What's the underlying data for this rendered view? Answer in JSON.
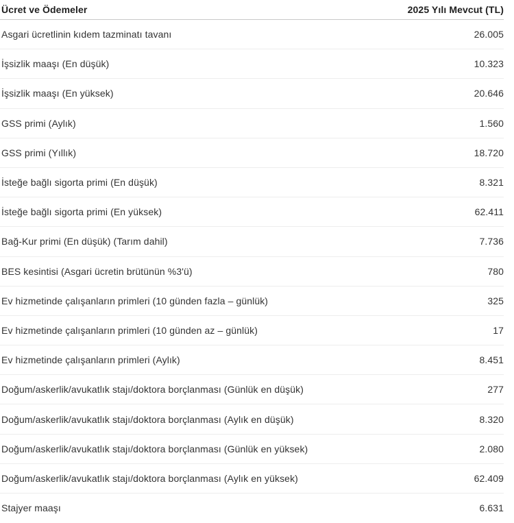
{
  "table": {
    "columns": [
      {
        "label": "Ücret ve Ödemeler"
      },
      {
        "label": "2025 Yılı Mevcut (TL)"
      }
    ],
    "rows": [
      {
        "label": "Asgari ücretlinin kıdem tazminatı tavanı",
        "value": "26.005"
      },
      {
        "label": "İşsizlik maaşı (En düşük)",
        "value": "10.323"
      },
      {
        "label": "İşsizlik maaşı (En yüksek)",
        "value": "20.646"
      },
      {
        "label": "GSS primi (Aylık)",
        "value": "1.560"
      },
      {
        "label": "GSS primi (Yıllık)",
        "value": "18.720"
      },
      {
        "label": "İsteğe bağlı sigorta primi (En düşük)",
        "value": "8.321"
      },
      {
        "label": "İsteğe bağlı sigorta primi (En yüksek)",
        "value": "62.411"
      },
      {
        "label": "Bağ-Kur primi (En düşük) (Tarım dahil)",
        "value": "7.736"
      },
      {
        "label": "BES kesintisi (Asgari ücretin brütünün %3'ü)",
        "value": "780"
      },
      {
        "label": "Ev hizmetinde çalışanların primleri (10 günden fazla – günlük)",
        "value": "325"
      },
      {
        "label": "Ev hizmetinde çalışanların primleri (10 günden az – günlük)",
        "value": "17"
      },
      {
        "label": "Ev hizmetinde çalışanların primleri (Aylık)",
        "value": "8.451"
      },
      {
        "label": "Doğum/askerlik/avukatlık stajı/doktora borçlanması (Günlük en düşük)",
        "value": "277"
      },
      {
        "label": "Doğum/askerlik/avukatlık stajı/doktora borçlanması (Aylık en düşük)",
        "value": "8.320"
      },
      {
        "label": "Doğum/askerlik/avukatlık stajı/doktora borçlanması (Günlük en yüksek)",
        "value": "2.080"
      },
      {
        "label": "Doğum/askerlik/avukatlık stajı/doktora borçlanması (Aylık en yüksek)",
        "value": "62.409"
      },
      {
        "label": "Stajyer maaşı",
        "value": "6.631"
      }
    ]
  },
  "colors": {
    "background": "#ffffff",
    "text": "#333333",
    "header_text": "#1f1f1f",
    "header_divider": "#c9c9c9",
    "row_divider": "#ededed"
  }
}
